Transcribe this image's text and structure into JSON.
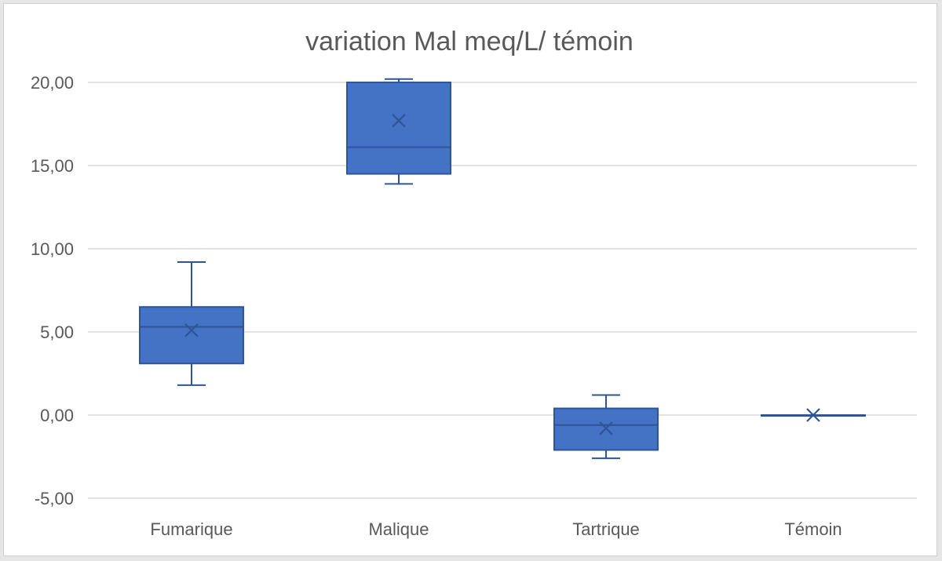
{
  "chart_data": {
    "type": "box",
    "title": "variation Mal meq/L/ témoin",
    "xlabel": "",
    "ylabel": "",
    "ylim": [
      -5,
      20
    ],
    "yticks": [
      -5,
      0,
      5,
      10,
      15,
      20
    ],
    "ytick_labels": [
      "-5,00",
      "0,00",
      "5,00",
      "10,00",
      "15,00",
      "20,00"
    ],
    "grid": true,
    "legend": "none",
    "categories": [
      "Fumarique",
      "Malique",
      "Tartrique",
      "Témoin"
    ],
    "boxes": [
      {
        "category": "Fumarique",
        "min": 1.8,
        "q1": 3.1,
        "median": 5.3,
        "q3": 6.5,
        "max": 9.2,
        "mean": 5.1
      },
      {
        "category": "Malique",
        "min": 13.9,
        "q1": 14.5,
        "median": 16.1,
        "q3": 20.0,
        "max": 20.2,
        "mean": 17.7
      },
      {
        "category": "Tartrique",
        "min": -2.6,
        "q1": -2.1,
        "median": -0.6,
        "q3": 0.4,
        "max": 1.2,
        "mean": -0.8
      },
      {
        "category": "Témoin",
        "min": 0.0,
        "q1": 0.0,
        "median": 0.0,
        "q3": 0.0,
        "max": 0.0,
        "mean": 0.0
      }
    ],
    "colors": {
      "box_fill": "#4472c4",
      "box_stroke": "#2f5597",
      "grid": "#d9d9d9",
      "text": "#595959"
    }
  }
}
